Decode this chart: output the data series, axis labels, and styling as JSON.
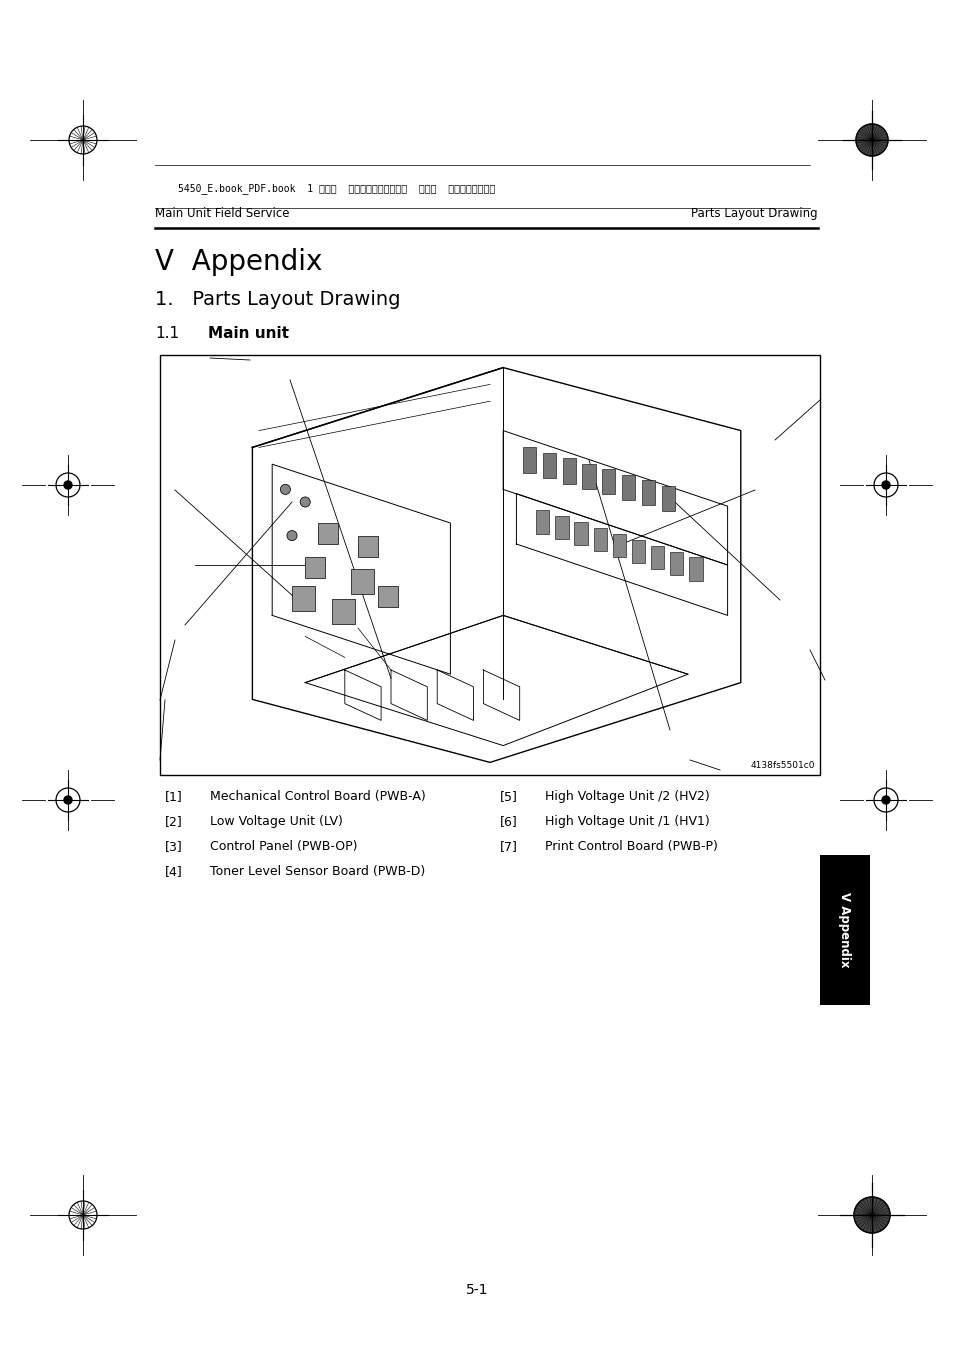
{
  "page_width": 9.54,
  "page_height": 13.51,
  "dpi": 100,
  "bg_color": "#ffffff",
  "header_left": "Main Unit Field Service",
  "header_right": "Parts Layout Drawing",
  "chapter_title": "V  Appendix",
  "section_title": "1.   Parts Layout Drawing",
  "subsection_num": "1.1",
  "subsection_bold": "Main unit",
  "figure_id": "4138fs5501c0",
  "parts_left": [
    [
      "[1]",
      "Mechanical Control Board (PWB-A)"
    ],
    [
      "[2]",
      "Low Voltage Unit (LV)"
    ],
    [
      "[3]",
      "Control Panel (PWB-OP)"
    ],
    [
      "[4]",
      "Toner Level Sensor Board (PWB-D)"
    ]
  ],
  "parts_right": [
    [
      "[5]",
      "High Voltage Unit /2 (HV2)"
    ],
    [
      "[6]",
      "High Voltage Unit /1 (HV1)"
    ],
    [
      "[7]",
      "Print Control Board (PWB-P)"
    ]
  ],
  "footer_text": "5-1",
  "header_file_text": "5450_E.book_PDF.book  1 ページ  ２００５年４月１２日  火曜日  午後１２時５４分",
  "tab_label": "V Appendix",
  "tab_color": "#000000",
  "tab_text_color": "#ffffff"
}
